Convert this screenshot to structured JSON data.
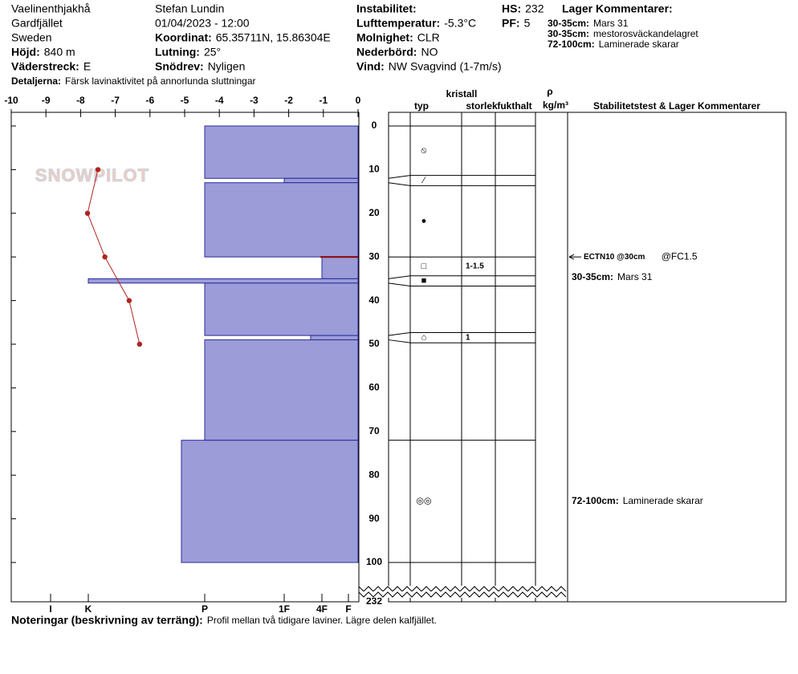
{
  "header": {
    "columns": [
      [
        {
          "value": "Vaelinenthjakhå"
        },
        {
          "value": "Gardfjället"
        },
        {
          "value": "Sweden"
        },
        {
          "label": "Höjd:",
          "value": "840 m"
        },
        {
          "label": "Väderstreck:",
          "value": "E"
        }
      ],
      [
        {
          "value": "Stefan Lundin"
        },
        {
          "value": "01/04/2023 - 12:00"
        },
        {
          "label": "Koordinat:",
          "value": "65.35711N, 15.86304E"
        },
        {
          "label": "Lutning:",
          "value": "25°"
        },
        {
          "label": "Snödrev:",
          "value": "Nyligen"
        }
      ],
      [
        {
          "label": "Instabilitet:"
        },
        {
          "label": "Lufttemperatur:",
          "value": "-5.3°C"
        },
        {
          "label": "Molnighet:",
          "value": "CLR"
        },
        {
          "label": "Nederbörd:",
          "value": "NO"
        },
        {
          "label": "Vind:",
          "value": "NW Svagvind (1-7m/s)"
        }
      ],
      [
        {
          "label": "HS:",
          "value": 232
        },
        {
          "label": "PF:",
          "value": 5
        }
      ]
    ],
    "details": {
      "label": "Detaljerna:",
      "value": "Färsk lavinaktivitet på annorlunda sluttningar"
    },
    "layer_comments": {
      "title": "Lager Kommentarer:",
      "entries": [
        {
          "label": "30-35cm:",
          "value": "Mars 31"
        },
        {
          "label": "30-35cm:",
          "value": "mestorosväckandelagret"
        },
        {
          "label": "72-100cm:",
          "value": "Laminerade skarar"
        }
      ]
    }
  },
  "chart_data": {
    "type": "snowprofile",
    "logo": "SNOWPILOT",
    "xlim": [
      -10,
      0
    ],
    "xticks": [
      -10,
      -9,
      -8,
      -7,
      -6,
      -5,
      -4,
      -3,
      -2,
      -1,
      0
    ],
    "ylim": [
      0,
      100
    ],
    "yticks": [
      0,
      10,
      20,
      30,
      40,
      50,
      60,
      70,
      80,
      90,
      100
    ],
    "hardness_ticks": [
      {
        "value": 6,
        "label": "I"
      },
      {
        "value": 5,
        "label": "K"
      },
      {
        "value": 4,
        "label": "P"
      },
      {
        "value": 3,
        "label": "1F"
      },
      {
        "value": 2,
        "label": "4F"
      },
      {
        "value": 1,
        "label": "F"
      }
    ],
    "bar_color": "#9c9cd8",
    "temperature": {
      "color": "#b22222",
      "depth": [
        10,
        20,
        30,
        40,
        50
      ],
      "values": [
        -7.5,
        -7.8,
        -7.3,
        -6.6,
        -6.3
      ]
    },
    "columns": {
      "crystal": "kristall",
      "type": "typ",
      "size": "storlek",
      "moisture": "fukthalt",
      "rho": "ρ",
      "density_unit": "kg/m³",
      "comments": "Stabilitetstest & Lager Kommentarer"
    },
    "layers": [
      {
        "top": 0,
        "bottom": 12,
        "hardness": 4,
        "grain": "⦸"
      },
      {
        "top": 12,
        "bottom": 13,
        "hardness": 3,
        "grain": "⁄"
      },
      {
        "top": 13,
        "bottom": 30,
        "hardness": 4,
        "grain": "●"
      },
      {
        "top": 30,
        "bottom": 35,
        "hardness": 2,
        "grain": "□",
        "size": "1-1.5",
        "comment": {
          "label": "30-35cm:",
          "value": "Mars 31"
        }
      },
      {
        "top": 35,
        "bottom": 36,
        "hardness": 5,
        "grain": "■"
      },
      {
        "top": 36,
        "bottom": 48,
        "hardness": 4
      },
      {
        "top": 48,
        "bottom": 49,
        "hardness": 2.3,
        "grain": "⌂",
        "size": "1"
      },
      {
        "top": 49,
        "bottom": 72,
        "hardness": 4
      },
      {
        "top": 72,
        "bottom": 100,
        "hardness": 4.2,
        "grain": "◎◎",
        "comment": {
          "label": "72-100cm:",
          "value": "Laminerade skarar"
        }
      }
    ],
    "tests": [
      {
        "depth": 30,
        "label": "ECTN10 @30cm",
        "value": "@FC1.5"
      }
    ]
  },
  "footer": {
    "label": "Noteringar (beskrivning av terräng):",
    "value": "Profil mellan två tidigare laviner. Lägre delen kalfjället."
  }
}
